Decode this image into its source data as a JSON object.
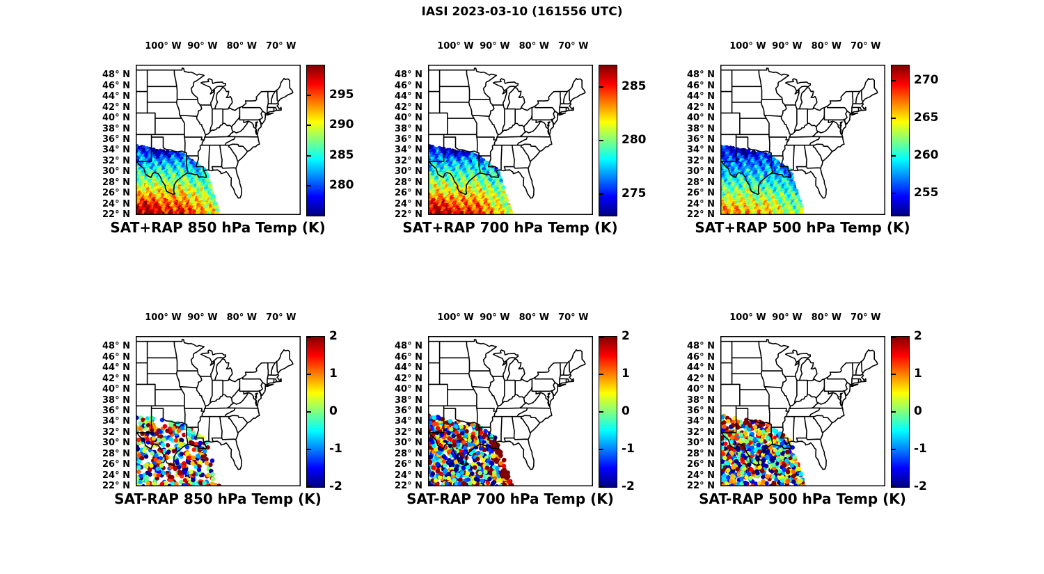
{
  "figure_title": "IASI 2023-03-10 (161556 UTC)",
  "axis": {
    "lon_range": [
      -107,
      -65
    ],
    "lat_range": [
      22,
      50
    ],
    "lon_tick_labels": [
      "100° W",
      "90° W",
      "80° W",
      "70° W"
    ],
    "lon_tick_values": [
      -100,
      -90,
      -80,
      -70
    ],
    "lat_tick_labels": [
      "48° N",
      "46° N",
      "44° N",
      "42° N",
      "40° N",
      "38° N",
      "36° N",
      "34° N",
      "32° N",
      "30° N",
      "28° N",
      "26° N",
      "24° N",
      "22° N"
    ],
    "lat_tick_values": [
      48,
      46,
      44,
      42,
      40,
      38,
      36,
      34,
      32,
      30,
      28,
      26,
      24,
      22
    ]
  },
  "colormap": "jet",
  "panels": [
    {
      "title": "SAT+RAP 850 hPa Temp (K)",
      "row": 0,
      "col": 0,
      "style": "dense-field",
      "colorbar": {
        "min": 275,
        "max": 300,
        "units": "K",
        "tick_labels": [
          "295",
          "290",
          "285",
          "280"
        ],
        "tick_values": [
          295,
          290,
          285,
          280
        ]
      }
    },
    {
      "title": "SAT+RAP 700 hPa Temp (K)",
      "row": 0,
      "col": 1,
      "style": "dense-field",
      "colorbar": {
        "min": 273,
        "max": 287,
        "units": "K",
        "tick_labels": [
          "285",
          "280",
          "275"
        ],
        "tick_values": [
          285,
          280,
          275
        ]
      }
    },
    {
      "title": "SAT+RAP 500 hPa Temp (K)",
      "row": 0,
      "col": 2,
      "style": "dense-field",
      "colorbar": {
        "min": 252,
        "max": 272,
        "units": "K",
        "tick_labels": [
          "270",
          "265",
          "260",
          "255"
        ],
        "tick_values": [
          270,
          265,
          260,
          255
        ]
      }
    },
    {
      "title": "SAT-RAP 850 hPa Temp (K)",
      "row": 1,
      "col": 0,
      "style": "scatter",
      "colorbar": {
        "min": -2,
        "max": 2,
        "units": "K",
        "tick_labels": [
          "2",
          "1",
          "0",
          "-1",
          "-2"
        ],
        "tick_values": [
          2,
          1,
          0,
          -1,
          -2
        ]
      }
    },
    {
      "title": "SAT-RAP 700 hPa Temp (K)",
      "row": 1,
      "col": 1,
      "style": "scatter",
      "colorbar": {
        "min": -2,
        "max": 2,
        "units": "K",
        "tick_labels": [
          "2",
          "1",
          "0",
          "-1",
          "-2"
        ],
        "tick_values": [
          2,
          1,
          0,
          -1,
          -2
        ]
      }
    },
    {
      "title": "SAT-RAP 500 hPa Temp (K)",
      "row": 1,
      "col": 2,
      "style": "scatter",
      "colorbar": {
        "min": -2,
        "max": 2,
        "units": "K",
        "tick_labels": [
          "2",
          "1",
          "0",
          "-1",
          "-2"
        ],
        "tick_values": [
          2,
          1,
          0,
          -1,
          -2
        ]
      }
    }
  ],
  "chart_data": [
    {
      "type": "heatmap",
      "title": "SAT+RAP 850 hPa Temp (K)",
      "projection": "equirectangular",
      "lon_range": [
        -107,
        -65
      ],
      "lat_range": [
        22,
        50
      ],
      "swath_lon": [
        -107,
        -85.6
      ],
      "swath_lat": [
        22,
        34.9
      ],
      "units": "K",
      "colormap": "jet",
      "colorbar_range": [
        275,
        300
      ],
      "colorbar_ticks": [
        280,
        285,
        290,
        295
      ],
      "pattern": "cold 278-284 K band over west Texas / New Mexico 30-35N; warm 289-297 K over southwest Gulf and Mexico 22-28N west of 95W; moderate 283-287 K cyan-green over southeast part of swath"
    },
    {
      "type": "heatmap",
      "title": "SAT+RAP 700 hPa Temp (K)",
      "projection": "equirectangular",
      "lon_range": [
        -107,
        -65
      ],
      "lat_range": [
        22,
        50
      ],
      "swath_lon": [
        -107,
        -85.6
      ],
      "swath_lat": [
        22,
        34.9
      ],
      "units": "K",
      "colormap": "jet",
      "colorbar_range": [
        273,
        287
      ],
      "colorbar_ticks": [
        275,
        280,
        285
      ],
      "pattern": "cold blue band 32-35N, cyan-green mid swath with yellow-orange patches 26-29N, warmest red spots 283-286 K near 22-25N west of 98W"
    },
    {
      "type": "heatmap",
      "title": "SAT+RAP 500 hPa Temp (K)",
      "projection": "equirectangular",
      "lon_range": [
        -107,
        -65
      ],
      "lat_range": [
        22,
        50
      ],
      "swath_lon": [
        -107,
        -85.6
      ],
      "swath_lat": [
        22,
        34.9
      ],
      "units": "K",
      "colormap": "jet",
      "colorbar_range": [
        252,
        272
      ],
      "colorbar_ticks": [
        255,
        260,
        265,
        270
      ],
      "pattern": "mostly 255-263 K cyan and blue; darkest blue band 31-34.5N; yellow 263-266 K along bottom edge 22-24N"
    },
    {
      "type": "scatter",
      "title": "SAT-RAP 850 hPa Temp (K)",
      "projection": "equirectangular",
      "lon_range": [
        -107,
        -65
      ],
      "lat_range": [
        22,
        50
      ],
      "swath_lon": [
        -107,
        -85.6
      ],
      "swath_lat": [
        22,
        34.9
      ],
      "units": "K",
      "colormap": "jet",
      "colorbar_range": [
        -2,
        2
      ],
      "colorbar_ticks": [
        -2,
        -1,
        0,
        1,
        2
      ],
      "pattern": "mixed +/-2 K differences; dark red cluster 31-33.5N between 103W and 96W; scattered blue, cyan, yellow and orange dots elsewhere"
    },
    {
      "type": "scatter",
      "title": "SAT-RAP 700 hPa Temp (K)",
      "projection": "equirectangular",
      "lon_range": [
        -107,
        -65
      ],
      "lat_range": [
        22,
        50
      ],
      "swath_lon": [
        -107,
        -85.6
      ],
      "swath_lat": [
        22,
        34.9
      ],
      "units": "K",
      "colormap": "jet",
      "colorbar_range": [
        -2,
        2
      ],
      "colorbar_ticks": [
        -2,
        -1,
        0,
        1,
        2
      ],
      "pattern": "dense dots; strong negative (dark blue) region lower-left, +2 K dark red band along the diagonal southeast swath edge, orange patch near 33N 102W"
    },
    {
      "type": "scatter",
      "title": "SAT-RAP 500 hPa Temp (K)",
      "projection": "equirectangular",
      "lon_range": [
        -107,
        -65
      ],
      "lat_range": [
        22,
        50
      ],
      "swath_lon": [
        -107,
        -85.6
      ],
      "swath_lat": [
        22,
        34.9
      ],
      "units": "K",
      "colormap": "jet",
      "colorbar_range": [
        -2,
        2
      ],
      "colorbar_ticks": [
        -2,
        -1,
        0,
        1,
        2
      ],
      "pattern": "+1 to +2 K orange band 31-34.5N; -1 to -2 K blue and cyan region 24-30N central; mixed orange dots along the bottom edge"
    }
  ]
}
